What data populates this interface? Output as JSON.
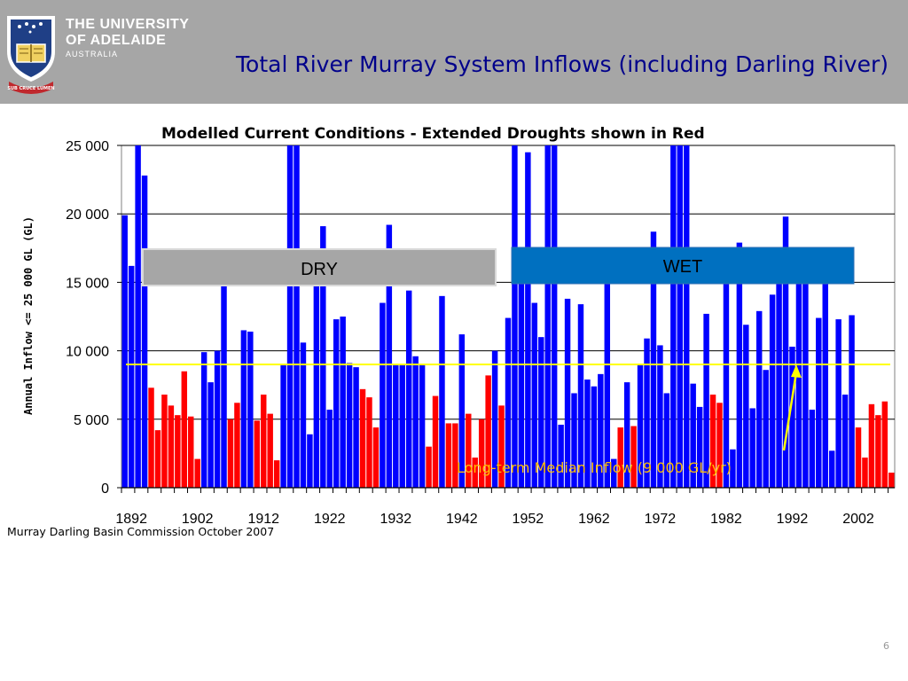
{
  "header": {
    "logo_line1": "THE UNIVERSITY",
    "logo_line2": "OF ADELAIDE",
    "logo_line3": "AUSTRALIA",
    "motto": "SUB CRUCE LUMEN",
    "slide_title": "Total River Murray System Inflows (including Darling River)"
  },
  "footer": {
    "source": "Murray Darling Basin Commission October 2007",
    "page_number": "6"
  },
  "colors": {
    "header_bg": "#a6a6a6",
    "wet_year": "#0000ff",
    "drought_year": "#ff0000",
    "median_line": "#ffff00",
    "annotation_text": "#ffc000",
    "dry_box": "#a6a6a6",
    "wet_box": "#0070c0"
  },
  "chart_data": {
    "type": "bar",
    "title": "Modelled Current Conditions - Extended Droughts shown in Red",
    "ylabel": "Annual Inflow <= 25 000 GL (GL)",
    "xlabel": "",
    "ylim": [
      0,
      25000
    ],
    "yticks": [
      0,
      5000,
      10000,
      15000,
      20000,
      25000
    ],
    "ytick_labels": [
      "0",
      "5 000",
      "10 000",
      "15 000",
      "20 000",
      "25 000"
    ],
    "xtick_labels": [
      "1892",
      "1902",
      "1912",
      "1922",
      "1932",
      "1942",
      "1952",
      "1962",
      "1972",
      "1982",
      "1992",
      "2002"
    ],
    "grid": true,
    "start_year": 1891,
    "values": [
      19900,
      16200,
      25000,
      22800,
      7300,
      4200,
      6800,
      6000,
      5300,
      8500,
      5200,
      2100,
      9900,
      7700,
      10000,
      15000,
      5000,
      6200,
      11500,
      11400,
      4900,
      6800,
      5400,
      2000,
      9000,
      25000,
      25000,
      10600,
      3900,
      15200,
      19100,
      5700,
      12300,
      12500,
      9100,
      8800,
      7200,
      6600,
      4400,
      13500,
      19200,
      9000,
      9000,
      14400,
      9600,
      9000,
      3000,
      6700,
      14000,
      4700,
      4700,
      11200,
      5400,
      2200,
      5000,
      8200,
      10000,
      6000,
      12400,
      25000,
      17500,
      24500,
      13500,
      11000,
      25000,
      25000,
      4600,
      13800,
      6900,
      13400,
      7900,
      7400,
      8300,
      17500,
      2100,
      4400,
      7700,
      4500,
      9000,
      10900,
      18700,
      10400,
      6900,
      25000,
      25000,
      25000,
      7600,
      5900,
      12700,
      6800,
      6200,
      16700,
      2800,
      17900,
      11900,
      5800,
      12900,
      8600,
      14100,
      17000,
      19800,
      10300,
      17000,
      15800,
      5700,
      12400,
      16300,
      2700,
      12300,
      6800,
      12600,
      4400,
      2200,
      6100,
      5300,
      6300,
      1100
    ],
    "drought": [
      0,
      0,
      0,
      0,
      1,
      1,
      1,
      1,
      1,
      1,
      1,
      1,
      0,
      0,
      0,
      0,
      1,
      1,
      0,
      0,
      1,
      1,
      1,
      1,
      0,
      0,
      0,
      0,
      0,
      0,
      0,
      0,
      0,
      0,
      0,
      0,
      1,
      1,
      1,
      0,
      0,
      0,
      0,
      0,
      0,
      0,
      1,
      1,
      0,
      1,
      1,
      0,
      1,
      1,
      1,
      1,
      0,
      1,
      0,
      0,
      0,
      0,
      0,
      0,
      0,
      0,
      0,
      0,
      0,
      0,
      0,
      0,
      0,
      0,
      0,
      1,
      0,
      1,
      0,
      0,
      0,
      0,
      0,
      0,
      0,
      0,
      0,
      0,
      0,
      1,
      1,
      0,
      0,
      0,
      0,
      0,
      0,
      0,
      0,
      0,
      0,
      0,
      0,
      0,
      0,
      0,
      0,
      0,
      0,
      0,
      0,
      1,
      1,
      1,
      1,
      1,
      1
    ],
    "series": [
      {
        "name": "Extended Droughts",
        "color": "#ff0000"
      }
    ],
    "median": {
      "value": 9000,
      "label": "Long-term Median Inflow (9 000 GL/yr)"
    },
    "annotations": {
      "dry": "DRY",
      "wet": "WET"
    }
  }
}
